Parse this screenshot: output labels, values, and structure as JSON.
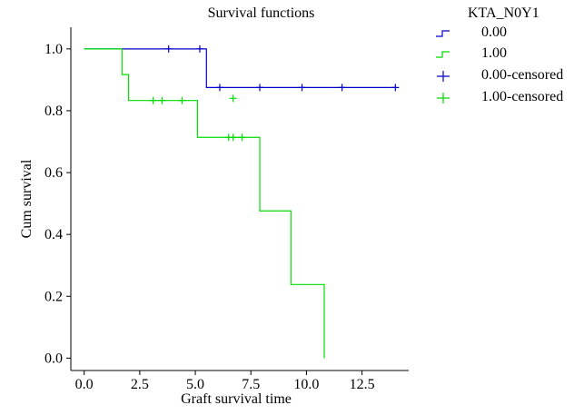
{
  "chart_data": {
    "type": "line",
    "subtype": "kaplan-meier step",
    "title": "Survival functions",
    "xlabel": "Graft survival time",
    "ylabel": "Cum survival",
    "xlim": [
      -0.6,
      14.6
    ],
    "ylim": [
      -0.04,
      1.07
    ],
    "xticks": [
      "0.0",
      "2.5",
      "5.0",
      "7.5",
      "10.0",
      "12.5"
    ],
    "xtick_values": [
      0,
      2.5,
      5,
      7.5,
      10,
      12.5
    ],
    "yticks": [
      "0.0",
      "0.2",
      "0.4",
      "0.6",
      "0.8",
      "1.0"
    ],
    "ytick_values": [
      0,
      0.2,
      0.4,
      0.6,
      0.8,
      1.0
    ],
    "grid": false,
    "legend_position": "top-right, outside plot",
    "legend_title": "KTA_N0Y1",
    "series": [
      {
        "name": "0.00",
        "color": "#0000cc",
        "step_x": [
          0,
          5.5,
          14.0
        ],
        "step_y": [
          1.0,
          0.875,
          0.875
        ],
        "censored": {
          "name": "0.00-censored",
          "x": [
            3.8,
            5.2,
            6.1,
            7.9,
            9.8,
            11.6,
            14.0
          ],
          "y": [
            1.0,
            1.0,
            0.875,
            0.875,
            0.875,
            0.875,
            0.875
          ]
        }
      },
      {
        "name": "1.00",
        "color": "#00dd00",
        "step_x": [
          0,
          1.7,
          2.0,
          5.1,
          7.9,
          9.3,
          10.8
        ],
        "step_y": [
          1.0,
          0.917,
          0.833,
          0.714,
          0.476,
          0.238,
          0.0
        ],
        "censored": {
          "name": "1.00-censored",
          "x": [
            3.1,
            3.5,
            4.4,
            6.5,
            6.7,
            7.1,
            6.7
          ],
          "y": [
            0.833,
            0.833,
            0.833,
            0.714,
            0.714,
            0.714,
            0.84
          ]
        }
      }
    ]
  }
}
